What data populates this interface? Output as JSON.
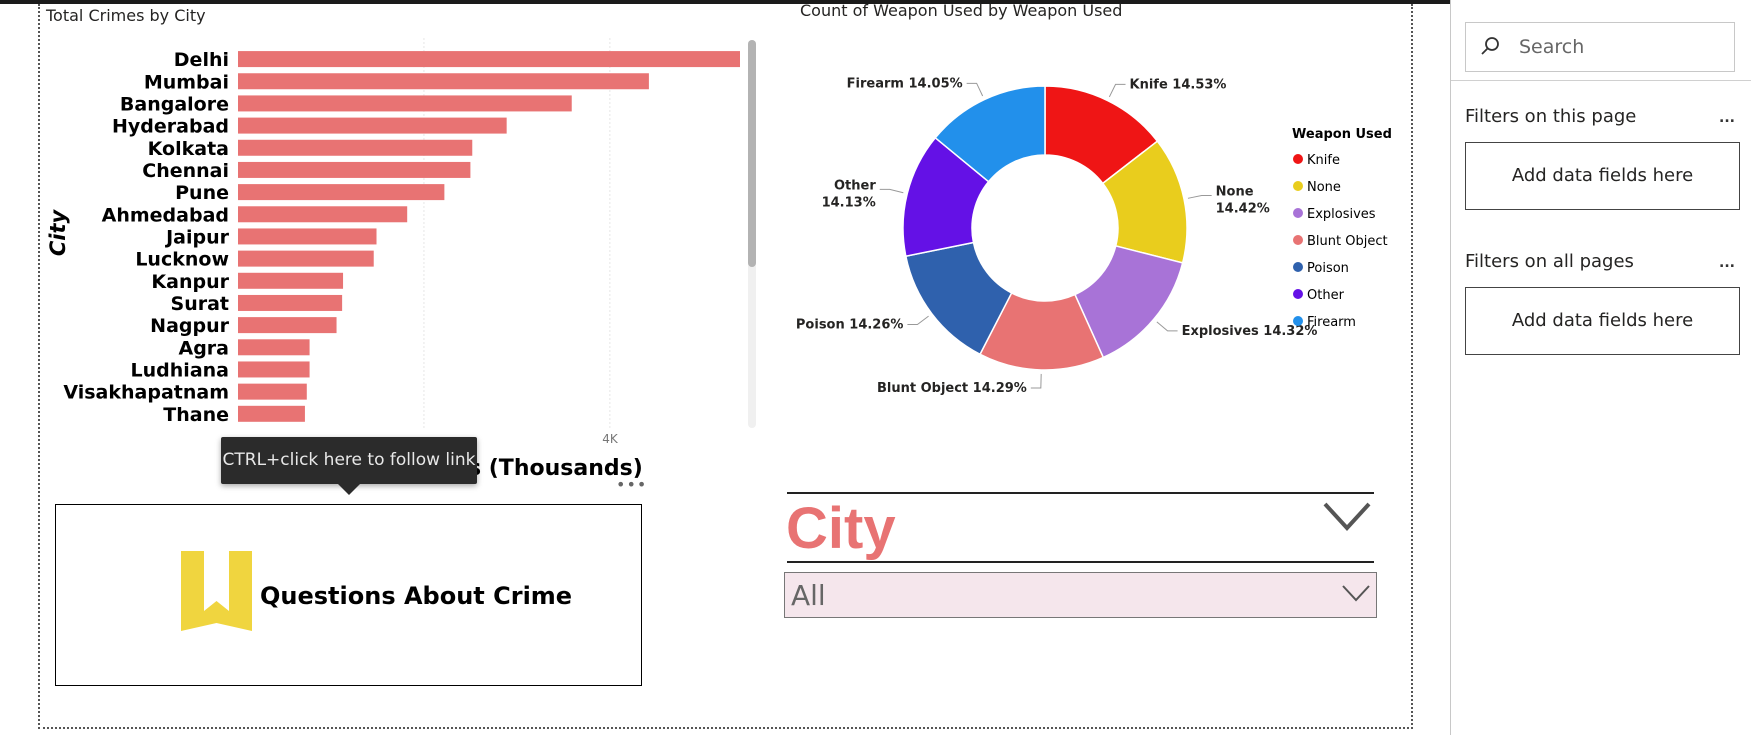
{
  "bar_chart": {
    "title": "Total Crimes by City",
    "ylabel": "City",
    "xlabel_visible": "s (Thousands)",
    "x_tick": "4K",
    "more": "..."
  },
  "chart_data": [
    {
      "type": "bar",
      "orientation": "horizontal",
      "title": "Total Crimes by City",
      "ylabel": "City",
      "xlabel": "s (Thousands)",
      "categories": [
        "Delhi",
        "Mumbai",
        "Bangalore",
        "Hyderabad",
        "Kolkata",
        "Chennai",
        "Pune",
        "Ahmedabad",
        "Jaipur",
        "Lucknow",
        "Kanpur",
        "Surat",
        "Nagpur",
        "Agra",
        "Ludhiana",
        "Visakhapatnam",
        "Thane"
      ],
      "values": [
        5400,
        4420,
        3590,
        2890,
        2520,
        2500,
        2220,
        1820,
        1490,
        1460,
        1130,
        1120,
        1060,
        770,
        770,
        740,
        720
      ],
      "xlim": [
        0,
        5400
      ],
      "x_ticks": [
        4000
      ],
      "color": "#e87373",
      "grid": true
    },
    {
      "type": "pie",
      "donut": true,
      "title": "Count of Weapon Used by Weapon Used",
      "legend_title": "Weapon Used",
      "legend_position": "right",
      "slices": [
        {
          "name": "Knife",
          "value": 14.53,
          "label": "Knife 14.53%",
          "color": "#ef1515"
        },
        {
          "name": "None",
          "value": 14.42,
          "label": "None 14.42%",
          "color": "#e9cd1d"
        },
        {
          "name": "Explosives",
          "value": 14.32,
          "label": "Explosives 14.32%",
          "color": "#a873d7"
        },
        {
          "name": "Blunt Object",
          "value": 14.29,
          "label": "Blunt Object 14.29%",
          "color": "#e87373"
        },
        {
          "name": "Poison",
          "value": 14.26,
          "label": "Poison 14.26%",
          "color": "#2f61ad"
        },
        {
          "name": "Other",
          "value": 14.13,
          "label": "Other 14.13%",
          "color": "#6411e6"
        },
        {
          "name": "Firearm",
          "value": 14.05,
          "label": "Firearm 14.05%",
          "color": "#2290eb"
        }
      ]
    }
  ],
  "tooltip": "CTRL+click here to follow link",
  "questions_button": {
    "label": "Questions About Crime",
    "icon": "bookmark-icon",
    "icon_color": "#f0d53f"
  },
  "slicer": {
    "title": "City",
    "value": "All",
    "title_color": "#e87373"
  },
  "filter_pane": {
    "search_placeholder": "Search",
    "this_page": "Filters on this page",
    "all_pages": "Filters on all pages",
    "well_text": "Add data fields here",
    "dots": "..."
  }
}
